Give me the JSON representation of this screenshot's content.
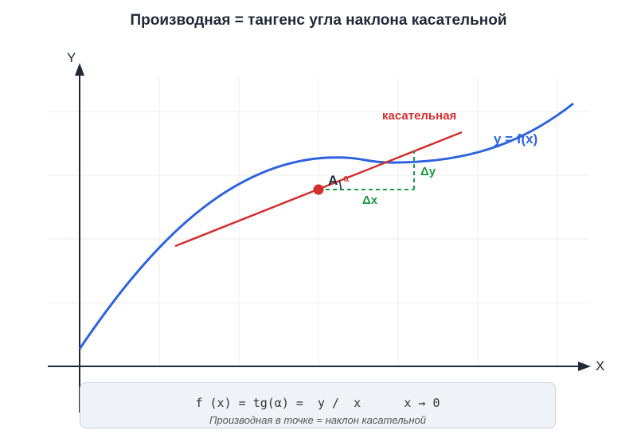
{
  "title": "Производная = тангенс угла наклона касательной",
  "axes": {
    "x_label": "X",
    "y_label": "Y"
  },
  "labels": {
    "tangent": "касательная",
    "curve": "y = f(x)",
    "point": "A",
    "angle": "α",
    "dx": "Δx",
    "dy": "Δy"
  },
  "formula": {
    "expression": "f (x) = tg(α) =  y /  x      x → 0",
    "note": "Производная в точке = наклон касательной"
  },
  "colors": {
    "curve": "#2d62e0",
    "tangent": "#d32f2f",
    "delta": "#1e9a46",
    "axis": "#1f2937",
    "grid": "#ececec"
  }
}
